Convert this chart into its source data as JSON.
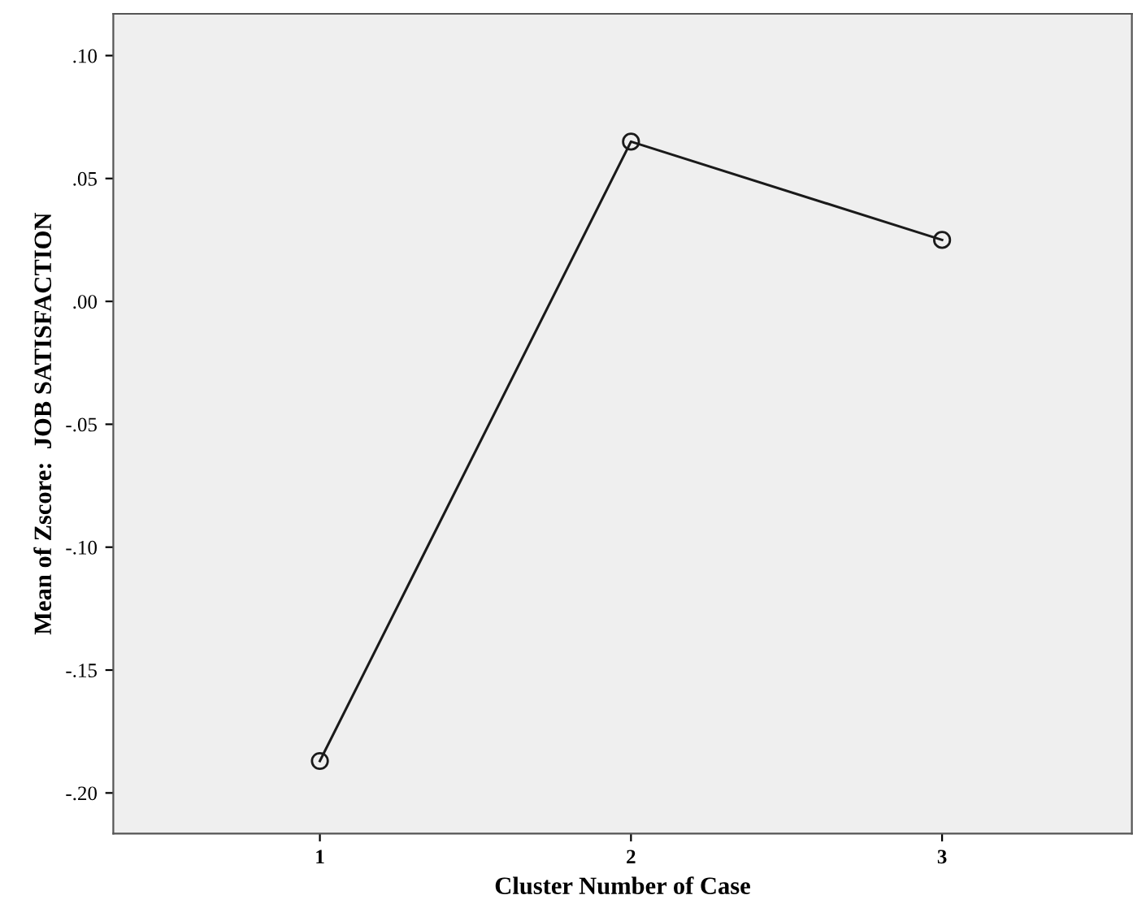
{
  "chart_data": {
    "type": "line",
    "xlabel": "Cluster Number of Case",
    "ylabel": "Mean of Zscore:  JOB SATISFACTION",
    "x": [
      1,
      2,
      3
    ],
    "values": [
      -0.187,
      0.065,
      0.025
    ],
    "color": "#1a1a1a",
    "marker": "circle",
    "line_style": "solid",
    "grid": false,
    "legend": false,
    "xlim": [
      0.336,
      3.61
    ],
    "xticks": [
      1,
      2,
      3
    ],
    "ylim": [
      -0.2165,
      0.117
    ],
    "yticks": [
      {
        "value": -0.2,
        "label": "-.20"
      },
      {
        "value": -0.15,
        "label": "-.15"
      },
      {
        "value": -0.1,
        "label": "-.10"
      },
      {
        "value": -0.05,
        "label": "-.05"
      },
      {
        "value": 0,
        "label": ".00"
      },
      {
        "value": 0.05,
        "label": ".05"
      },
      {
        "value": 0.1,
        "label": ".10"
      }
    ]
  }
}
